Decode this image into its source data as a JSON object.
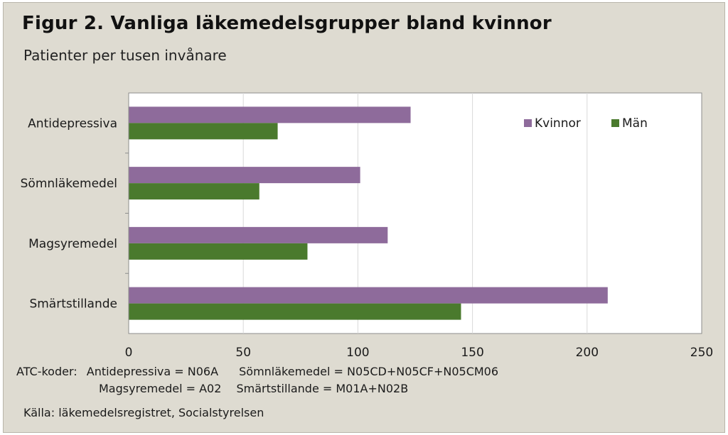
{
  "slide": {
    "title": "Figur 2. Vanliga läkemedelsgrupper bland kvinnor",
    "subtitle": "Patienter per tusen invånare",
    "atc_line1_prefix": "ATC-koder:",
    "atc_line1_a": "Antidepressiva = N06A",
    "atc_line1_b": "Sömnläkemedel = N05CD+N05CF+N05CM06",
    "atc_line2_a": "Magsyremedel = A02",
    "atc_line2_b": "Smärtstillande = M01A+N02B",
    "source": "Källa: läkemedelsregistret, Socialstyrelsen"
  },
  "chart_data": {
    "type": "bar",
    "orientation": "horizontal",
    "categories": [
      "Antidepressiva",
      "Sömnläkemedel",
      "Magsyremedel",
      "Smärtstillande"
    ],
    "series": [
      {
        "name": "Kvinnor",
        "color": "#8e6b9b",
        "values": [
          123,
          101,
          113,
          209
        ]
      },
      {
        "name": "Män",
        "color": "#4a7a2d",
        "values": [
          65,
          57,
          78,
          145
        ]
      }
    ],
    "xlim": [
      0,
      250
    ],
    "xticks": [
      "0",
      "50",
      "100",
      "150",
      "200",
      "250"
    ],
    "grid": "vertical",
    "legend_position": "top-right"
  }
}
